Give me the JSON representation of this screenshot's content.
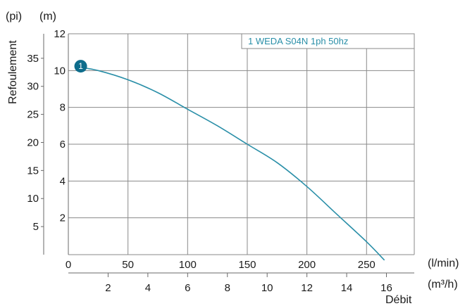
{
  "chart_data": {
    "type": "line",
    "title": "",
    "xlabel": "Débit",
    "ylabel": "Refoulement",
    "x_units": [
      "(l/min)",
      "(m³/h)"
    ],
    "y_units": [
      "(pi)",
      "(m)"
    ],
    "xlim": [
      0,
      290
    ],
    "ylim": [
      0,
      12
    ],
    "grid": true,
    "x_ticks_lmin": [
      "0",
      "50",
      "100",
      "150",
      "200",
      "250"
    ],
    "x_ticks_m3h": [
      "2",
      "4",
      "6",
      "8",
      "10",
      "12",
      "14",
      "16"
    ],
    "y_ticks_m": [
      "2",
      "4",
      "6",
      "8",
      "10",
      "12"
    ],
    "y_ticks_ft": [
      "5",
      "10",
      "15",
      "20",
      "25",
      "30",
      "35"
    ],
    "legend": {
      "label": "1 WEDA S04N 1ph 50hz",
      "placement": "top-right"
    },
    "series": [
      {
        "name": "1 WEDA S04N 1ph 50hz",
        "marker_label": "1",
        "color": "#2a8fa8",
        "x": [
          8,
          25,
          50,
          75,
          100,
          125,
          150,
          175,
          200,
          225,
          250,
          265
        ],
        "y": [
          10.2,
          10.0,
          9.5,
          8.8,
          7.9,
          7.0,
          6.0,
          5.0,
          3.7,
          2.2,
          0.7,
          -0.3
        ]
      }
    ]
  }
}
